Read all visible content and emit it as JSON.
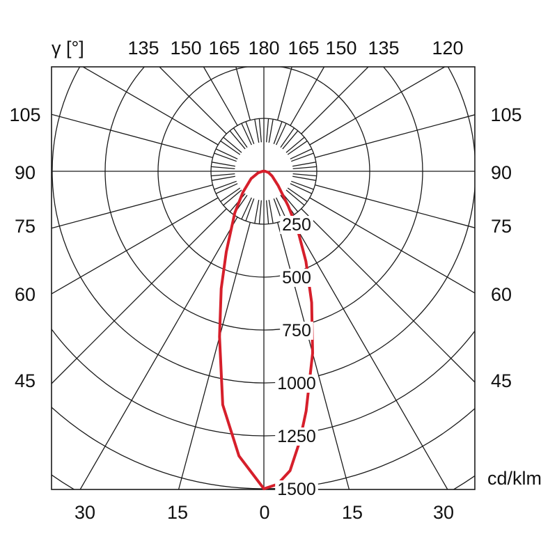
{
  "chart_data": {
    "type": "polar",
    "unit_label": "cd/klm",
    "angle_axis_label": "γ [°]",
    "radial_ticks": [
      "250",
      "500",
      "750",
      "1000",
      "1250",
      "1500"
    ],
    "radial_values": [
      250,
      500,
      750,
      1000,
      1250,
      1500
    ],
    "top_ticks": [
      "135",
      "150",
      "165",
      "180",
      "165",
      "150",
      "135",
      "120"
    ],
    "side_ticks_left": [
      "105",
      "90",
      "75",
      "60",
      "45"
    ],
    "side_ticks_right": [
      "105",
      "90",
      "75",
      "60",
      "45"
    ],
    "bottom_ticks": [
      "30",
      "15",
      "0",
      "15",
      "30"
    ],
    "grid": true,
    "series": [
      {
        "color": "#d61f2b",
        "points": [
          {
            "gamma": 0,
            "cd": 1500
          },
          {
            "gamma": 2.5,
            "cd": 1480
          },
          {
            "gamma": 5,
            "cd": 1420
          },
          {
            "gamma": 7.5,
            "cd": 1290
          },
          {
            "gamma": 10,
            "cd": 1150
          },
          {
            "gamma": 15,
            "cd": 890
          },
          {
            "gamma": 20,
            "cd": 660
          },
          {
            "gamma": 25,
            "cd": 470
          },
          {
            "gamma": 30,
            "cd": 320
          },
          {
            "gamma": 35,
            "cd": 200
          },
          {
            "gamma": 45,
            "cd": 95
          },
          {
            "gamma": 60,
            "cd": 45
          },
          {
            "gamma": 75,
            "cd": 22
          },
          {
            "gamma": 85,
            "cd": 8
          },
          {
            "gamma": 90,
            "cd": 0
          },
          {
            "gamma": 95,
            "cd": 5
          },
          {
            "gamma": 180,
            "cd": 0
          },
          {
            "gamma": 265,
            "cd": 5
          },
          {
            "gamma": 270,
            "cd": 0
          },
          {
            "gamma": 275,
            "cd": 8
          },
          {
            "gamma": 285,
            "cd": 28
          },
          {
            "gamma": 300,
            "cd": 70
          },
          {
            "gamma": 315,
            "cd": 140
          },
          {
            "gamma": 325,
            "cd": 240
          },
          {
            "gamma": 335,
            "cd": 420
          },
          {
            "gamma": 340,
            "cd": 590
          },
          {
            "gamma": 345,
            "cd": 810
          },
          {
            "gamma": 350,
            "cd": 1120
          },
          {
            "gamma": 355,
            "cd": 1350
          },
          {
            "gamma": 360,
            "cd": 1500
          }
        ]
      }
    ]
  }
}
